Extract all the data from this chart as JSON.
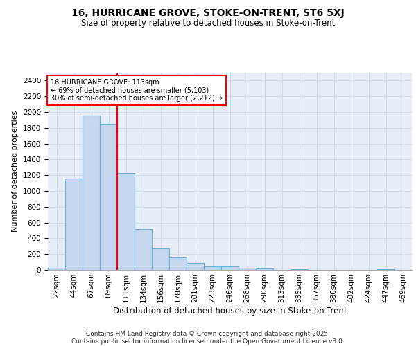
{
  "title1": "16, HURRICANE GROVE, STOKE-ON-TRENT, ST6 5XJ",
  "title2": "Size of property relative to detached houses in Stoke-on-Trent",
  "xlabel": "Distribution of detached houses by size in Stoke-on-Trent",
  "ylabel": "Number of detached properties",
  "categories": [
    "22sqm",
    "44sqm",
    "67sqm",
    "89sqm",
    "111sqm",
    "134sqm",
    "156sqm",
    "178sqm",
    "201sqm",
    "223sqm",
    "246sqm",
    "268sqm",
    "290sqm",
    "313sqm",
    "335sqm",
    "357sqm",
    "380sqm",
    "402sqm",
    "424sqm",
    "447sqm",
    "469sqm"
  ],
  "values": [
    25,
    1160,
    1960,
    1850,
    1230,
    515,
    275,
    155,
    90,
    48,
    40,
    22,
    15,
    0,
    5,
    0,
    0,
    0,
    0,
    8,
    0
  ],
  "bar_color": "#c5d8f0",
  "bar_edge_color": "#6baed6",
  "grid_color": "#d0dcea",
  "background_color": "#e8eef8",
  "vline_color": "red",
  "vline_index": 3.5,
  "annotation_text": "16 HURRICANE GROVE: 113sqm\n← 69% of detached houses are smaller (5,103)\n30% of semi-detached houses are larger (2,212) →",
  "annotation_box_color": "red",
  "ylim": [
    0,
    2500
  ],
  "yticks": [
    0,
    200,
    400,
    600,
    800,
    1000,
    1200,
    1400,
    1600,
    1800,
    2000,
    2200,
    2400
  ],
  "footer": "Contains HM Land Registry data © Crown copyright and database right 2025.\nContains public sector information licensed under the Open Government Licence v3.0.",
  "title_fontsize": 10,
  "subtitle_fontsize": 8.5,
  "tick_fontsize": 7.5,
  "ylabel_fontsize": 8,
  "xlabel_fontsize": 8.5,
  "footer_fontsize": 6.5
}
